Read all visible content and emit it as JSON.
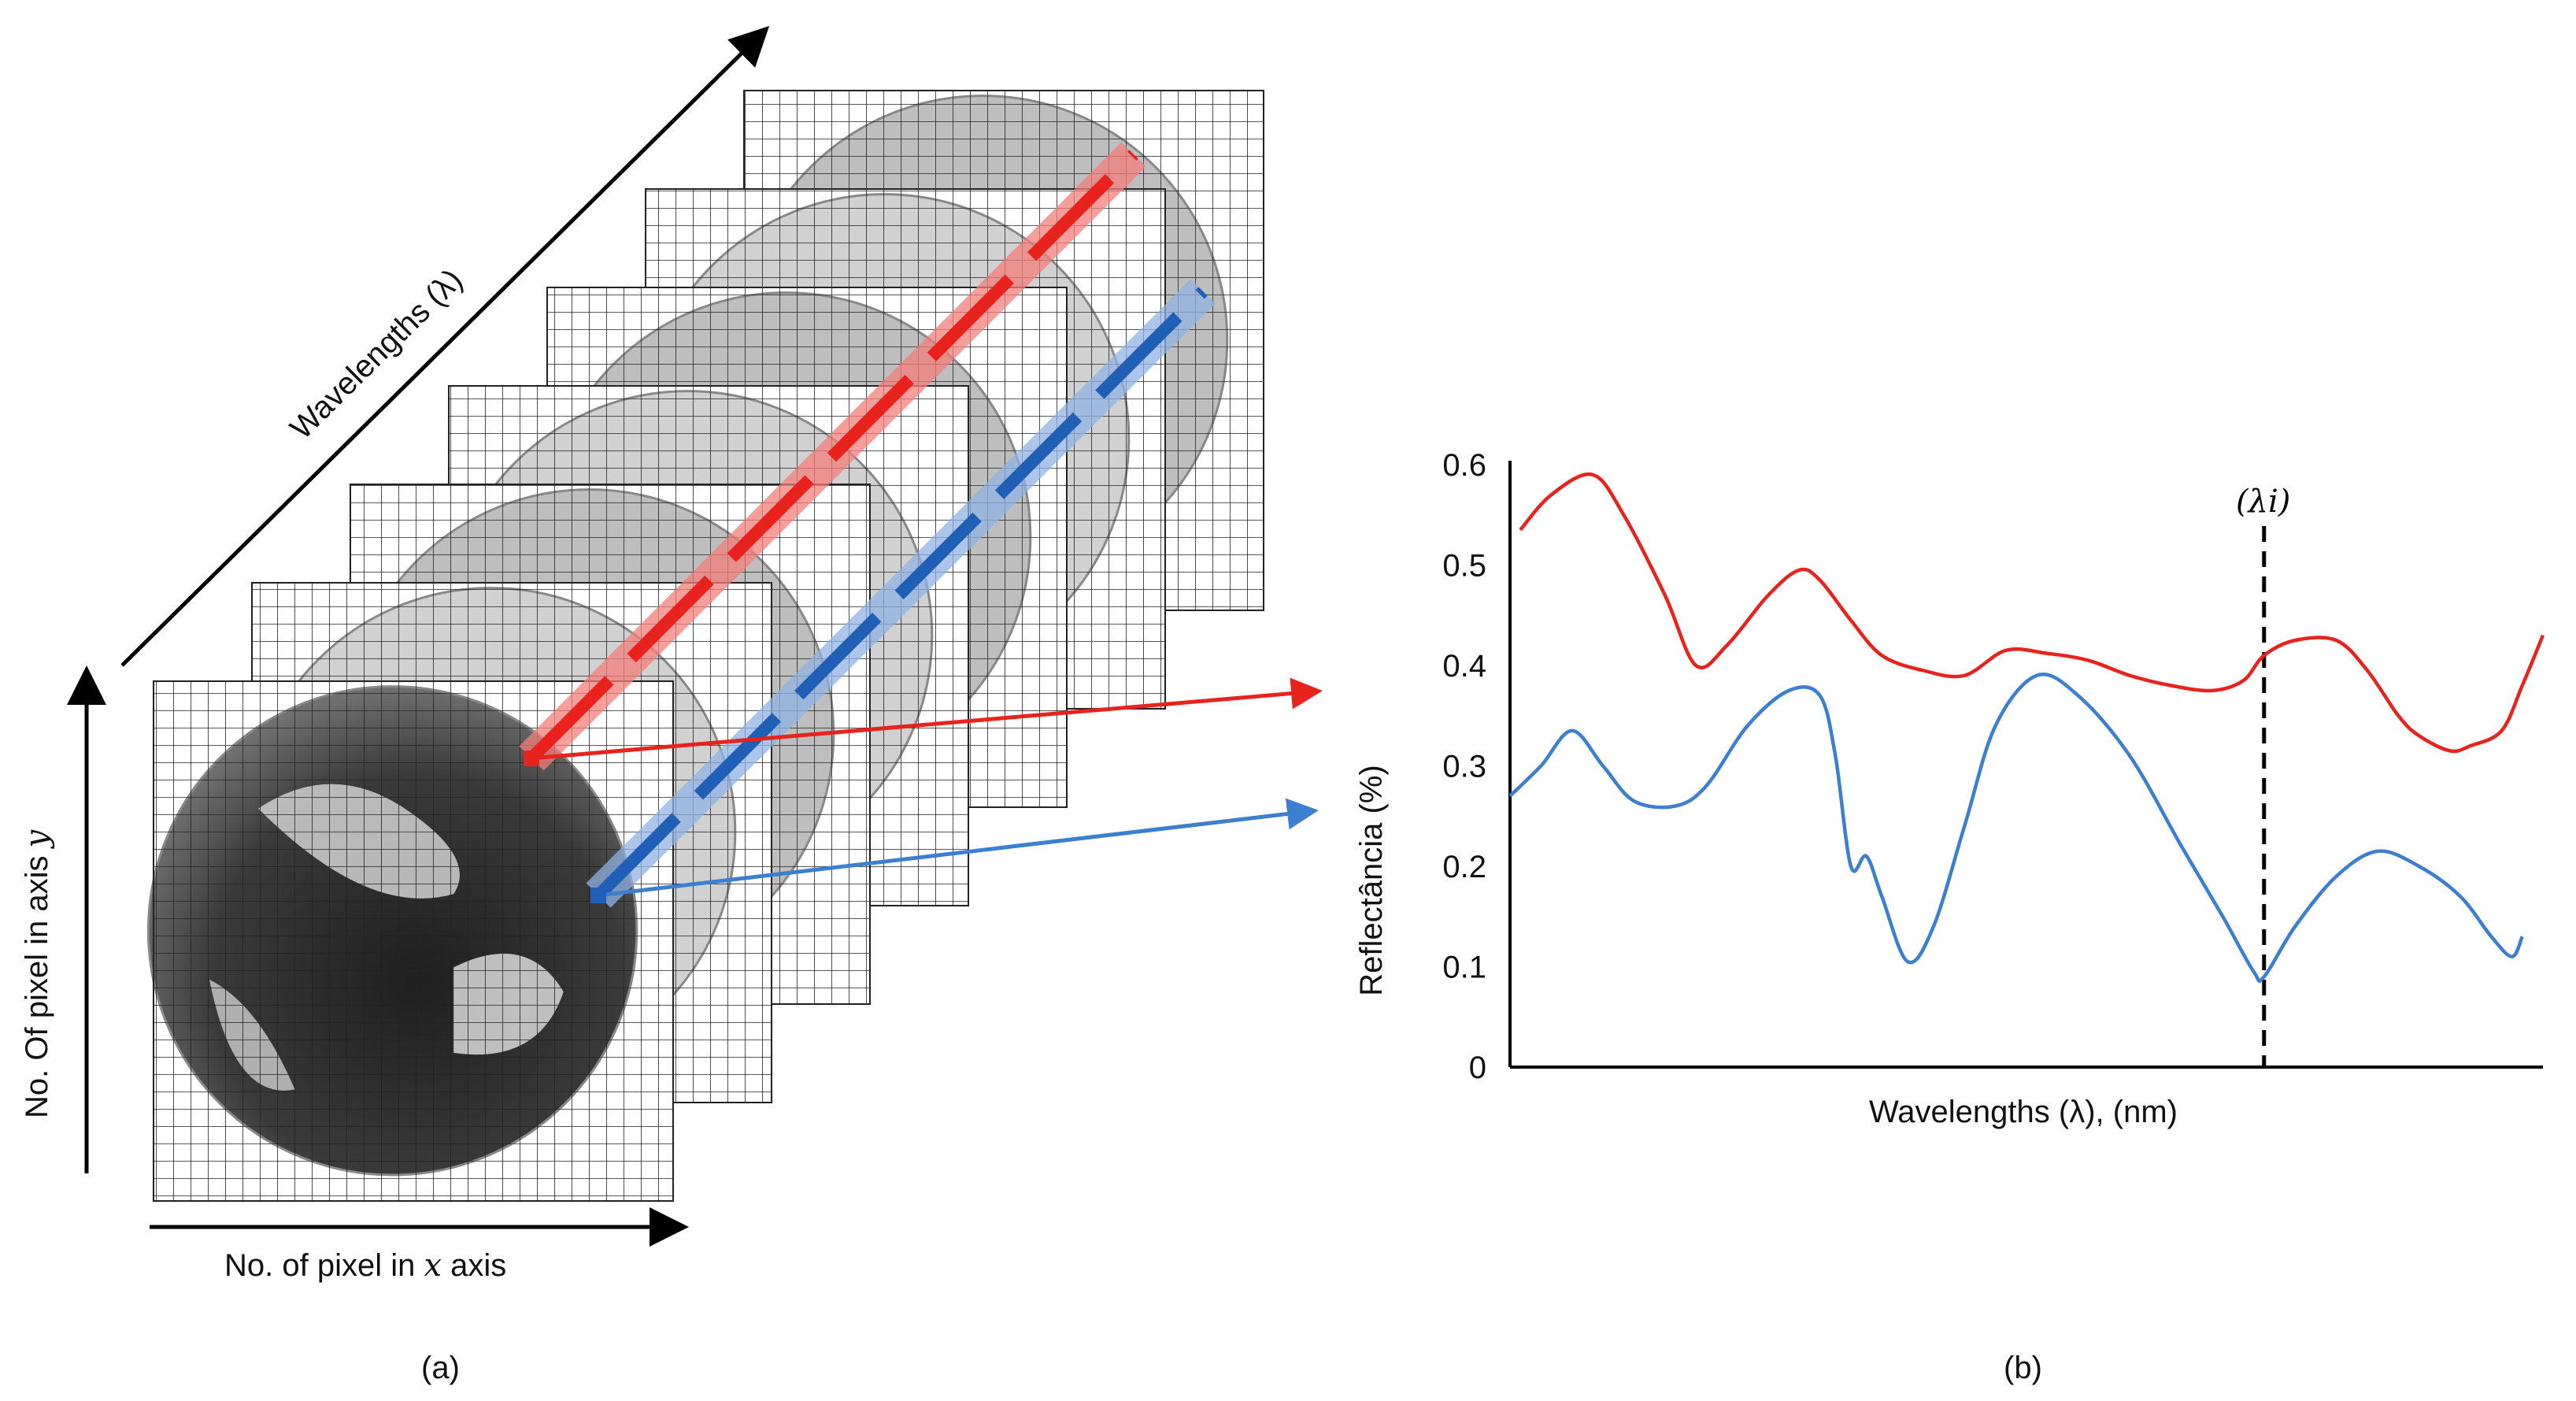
{
  "panel_a": {
    "wavelength_axis_label": "Wavelengths (λ)",
    "y_axis_label": "No. Of pixel in  axis",
    "y_axis_var": "y",
    "x_axis_label_pre": "No. of pixel in ",
    "x_axis_var": "x",
    "x_axis_label_post": " axis",
    "caption": "(a)",
    "layer_count": 7,
    "colors": {
      "red_spectrum": "#e8231d",
      "blue_spectrum": "#3c7fd0"
    }
  },
  "panel_b": {
    "caption": "(b)",
    "marker_label": "(λi)",
    "chart_data": {
      "type": "line",
      "ylabel": "Reflectância (%)",
      "xlabel": "Wavelengths (λ), (nm)",
      "ylim": [
        0,
        0.6
      ],
      "y_ticks": [
        0,
        0.1,
        0.2,
        0.3,
        0.4,
        0.5,
        0.6
      ],
      "y_tick_labels": [
        "0",
        "0.1",
        "0.2",
        "0.3",
        "0.4",
        "0.5",
        "0.6"
      ],
      "x_ticks_shown": false,
      "marker_x": 0.73,
      "series": [
        {
          "color": "#e8231d",
          "x": [
            0.01,
            0.04,
            0.08,
            0.11,
            0.15,
            0.18,
            0.21,
            0.25,
            0.28,
            0.3,
            0.33,
            0.36,
            0.4,
            0.44,
            0.48,
            0.52,
            0.56,
            0.6,
            0.64,
            0.68,
            0.71,
            0.73,
            0.76,
            0.8,
            0.83,
            0.86,
            0.88,
            0.91,
            0.93,
            0.96,
            0.98,
            1.0
          ],
          "y": [
            0.535,
            0.57,
            0.59,
            0.55,
            0.47,
            0.4,
            0.42,
            0.47,
            0.495,
            0.485,
            0.445,
            0.41,
            0.395,
            0.39,
            0.415,
            0.412,
            0.405,
            0.39,
            0.38,
            0.375,
            0.385,
            0.41,
            0.425,
            0.425,
            0.395,
            0.35,
            0.33,
            0.315,
            0.32,
            0.335,
            0.38,
            0.43
          ]
        },
        {
          "color": "#3c7fd0",
          "x": [
            0.0,
            0.03,
            0.06,
            0.09,
            0.12,
            0.16,
            0.19,
            0.23,
            0.27,
            0.3,
            0.315,
            0.33,
            0.345,
            0.36,
            0.385,
            0.41,
            0.44,
            0.47,
            0.51,
            0.55,
            0.6,
            0.65,
            0.69,
            0.72,
            0.73,
            0.76,
            0.8,
            0.84,
            0.88,
            0.92,
            0.95,
            0.97,
            0.98
          ],
          "y": [
            0.27,
            0.3,
            0.335,
            0.3,
            0.265,
            0.26,
            0.28,
            0.34,
            0.375,
            0.37,
            0.31,
            0.2,
            0.21,
            0.17,
            0.105,
            0.14,
            0.24,
            0.34,
            0.39,
            0.37,
            0.31,
            0.22,
            0.15,
            0.095,
            0.09,
            0.14,
            0.19,
            0.215,
            0.2,
            0.17,
            0.13,
            0.11,
            0.13
          ]
        }
      ]
    }
  }
}
